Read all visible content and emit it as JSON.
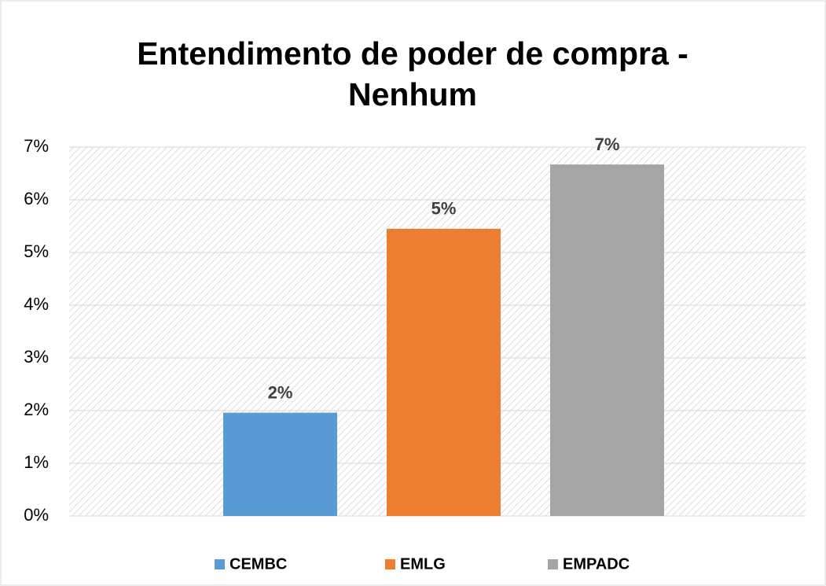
{
  "chart_data": {
    "type": "bar",
    "title": "Entendimento de poder de compra - Nenhum",
    "categories": [
      null
    ],
    "series": [
      {
        "name": "CEMBC",
        "color": "#5b9bd5",
        "values": [
          1.96
        ],
        "value_labels": [
          "2%"
        ]
      },
      {
        "name": "EMLG",
        "color": "#ed7d31",
        "values": [
          5.45
        ],
        "value_labels": [
          "5%"
        ]
      },
      {
        "name": "EMPADC",
        "color": "#a5a5a5",
        "values": [
          6.67
        ],
        "value_labels": [
          "7%"
        ]
      }
    ],
    "ylim": [
      0,
      7
    ],
    "yticks": [
      {
        "value": 0,
        "label": "0%"
      },
      {
        "value": 1,
        "label": "1%"
      },
      {
        "value": 2,
        "label": "2%"
      },
      {
        "value": 3,
        "label": "3%"
      },
      {
        "value": 4,
        "label": "4%"
      },
      {
        "value": 5,
        "label": "5%"
      },
      {
        "value": 6,
        "label": "6%"
      },
      {
        "value": 7,
        "label": "7%"
      }
    ],
    "grid": true,
    "legend": "bottom"
  }
}
